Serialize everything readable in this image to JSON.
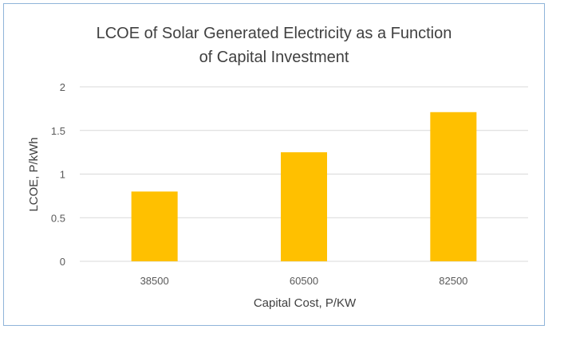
{
  "chart_data": {
    "type": "bar",
    "title_lines": [
      "LCOE of Solar Generated Electricity as a Function",
      "of Capital Investment"
    ],
    "xlabel": "Capital Cost, P/KW",
    "ylabel": "LCOE, P/kWh",
    "categories": [
      "38500",
      "60500",
      "82500"
    ],
    "values": [
      0.8,
      1.25,
      1.71
    ],
    "ylim": [
      0,
      2
    ],
    "yticks": [
      {
        "value": 0,
        "label": "0"
      },
      {
        "value": 0.5,
        "label": "0.5"
      },
      {
        "value": 1,
        "label": "1"
      },
      {
        "value": 1.5,
        "label": "1.5"
      },
      {
        "value": 2,
        "label": "2"
      }
    ],
    "grid": true,
    "legend": "none",
    "bar_color": "#ffc000",
    "grid_color": "#d9d9d9"
  }
}
